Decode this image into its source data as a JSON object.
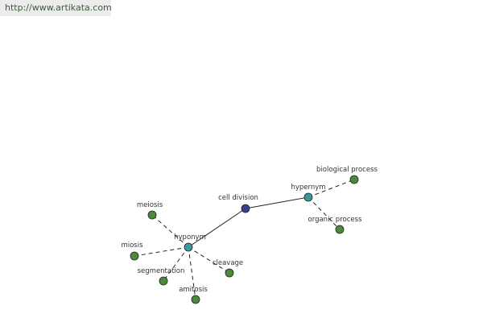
{
  "header": {
    "url": "http://www.artikata.com"
  },
  "nodes": [
    {
      "label": "cell division"
    },
    {
      "label": "hypernym"
    },
    {
      "label": "hyponym"
    },
    {
      "label": "biological process"
    },
    {
      "label": "organic process"
    },
    {
      "label": "meiosis"
    },
    {
      "label": "miosis"
    },
    {
      "label": "segmentation"
    },
    {
      "label": "amitosis"
    },
    {
      "label": "cleavage"
    }
  ]
}
